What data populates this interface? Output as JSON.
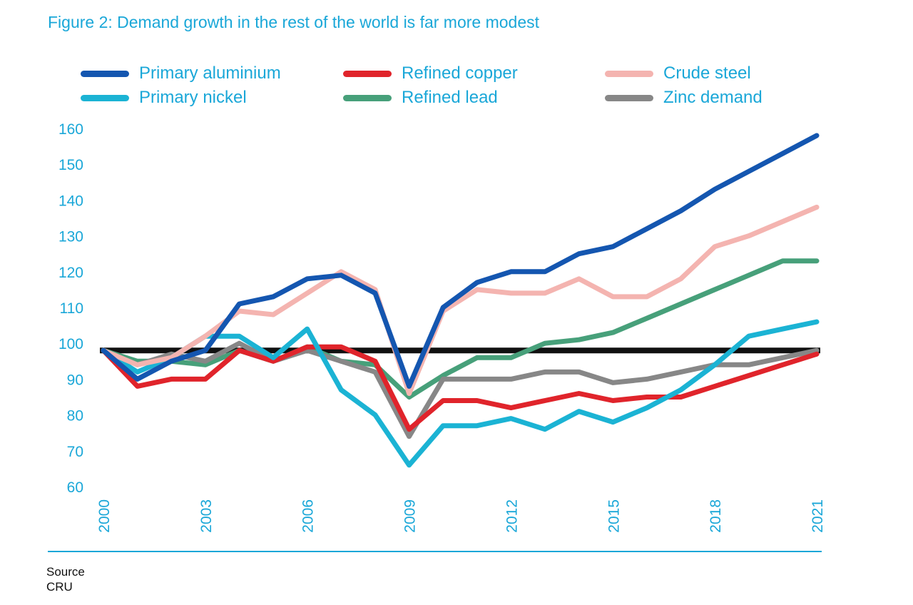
{
  "chart_data": {
    "type": "line",
    "title": "Figure 2: Demand growth in the rest of the world is far more modest",
    "xlabel": "",
    "ylabel": "",
    "ylim": [
      60,
      160
    ],
    "yticks": [
      60,
      70,
      80,
      90,
      100,
      110,
      120,
      130,
      140,
      150,
      160
    ],
    "xlim": [
      2000,
      2021
    ],
    "xticks": [
      2000,
      2003,
      2006,
      2009,
      2012,
      2015,
      2018,
      2021
    ],
    "x": [
      2000,
      2001,
      2002,
      2003,
      2004,
      2005,
      2006,
      2007,
      2008,
      2009,
      2010,
      2011,
      2012,
      2013,
      2014,
      2015,
      2016,
      2017,
      2018,
      2019,
      2020,
      2021
    ],
    "reference_line": 98,
    "grid": false,
    "legend_position": "top",
    "series": [
      {
        "name": "Primary aluminium",
        "color": "#1456b0",
        "values": [
          98,
          90,
          95,
          98,
          111,
          113,
          118,
          119,
          114,
          88,
          110,
          117,
          120,
          120,
          125,
          127,
          132,
          137,
          143,
          148,
          153,
          158
        ]
      },
      {
        "name": "Refined copper",
        "color": "#e0242b",
        "values": [
          98,
          88,
          90,
          90,
          98,
          95,
          99,
          99,
          95,
          76,
          84,
          84,
          82,
          84,
          86,
          84,
          85,
          85,
          88,
          91,
          94,
          97
        ]
      },
      {
        "name": "Crude steel",
        "color": "#f4b4b0",
        "values": [
          98,
          94,
          96,
          102,
          109,
          108,
          114,
          120,
          115,
          86,
          109,
          115,
          114,
          114,
          118,
          113,
          113,
          118,
          127,
          130,
          134,
          138
        ]
      },
      {
        "name": "Primary nickel",
        "color": "#1bb3d4",
        "values": [
          98,
          92,
          96,
          102,
          102,
          96,
          104,
          87,
          80,
          66,
          77,
          77,
          79,
          76,
          81,
          78,
          82,
          87,
          94,
          102,
          104,
          106
        ]
      },
      {
        "name": "Refined lead",
        "color": "#47a07a",
        "values": [
          98,
          95,
          95,
          94,
          98,
          95,
          99,
          95,
          94,
          85,
          91,
          96,
          96,
          100,
          101,
          103,
          107,
          111,
          115,
          119,
          123,
          123
        ]
      },
      {
        "name": "Zinc demand",
        "color": "#878787",
        "values": [
          98,
          94,
          97,
          95,
          100,
          95,
          98,
          95,
          92,
          74,
          90,
          90,
          90,
          92,
          92,
          89,
          90,
          92,
          94,
          94,
          96,
          98
        ]
      }
    ]
  },
  "source": {
    "label": "Source",
    "value": "CRU"
  }
}
